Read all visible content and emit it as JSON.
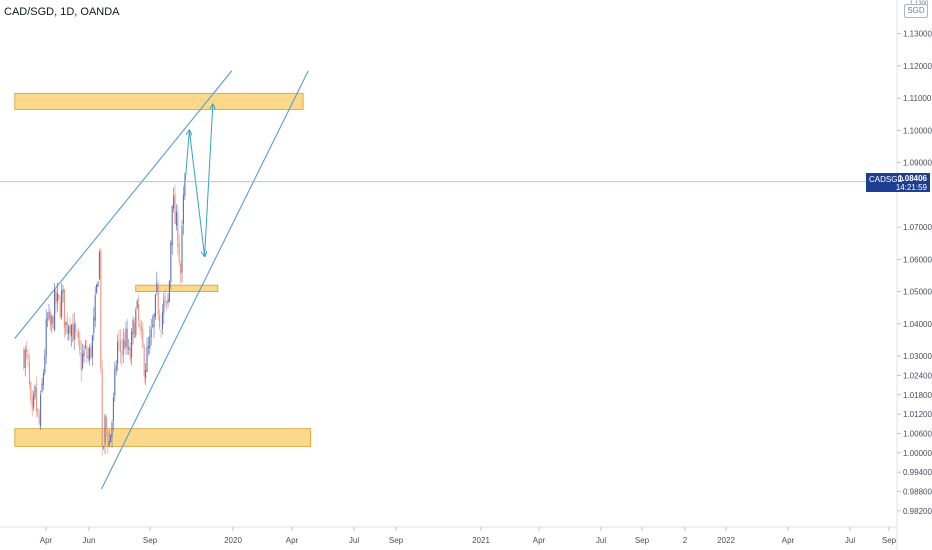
{
  "chart_title": "CAD/SGD, 1D, OANDA",
  "currency_badge": "SGD",
  "gear_hint": "1.1300",
  "price_tag": {
    "symbol": "CADSGD",
    "value": "1.08406",
    "countdown": "14:21:59"
  },
  "colors": {
    "up": "#5b6fb5",
    "down": "#f0917f",
    "zone_fill": "#fcd88a",
    "zone_border": "#d69e2e",
    "trendline": "#5b9bd5",
    "projection": "#3aa0c8",
    "price_line": "#8ab4e0",
    "price_tag": "#1e3f91"
  },
  "chart_data": {
    "type": "candlestick",
    "title": "CAD/SGD, 1D, OANDA",
    "y_range": [
      0.977,
      1.1395
    ],
    "y_ticks": [
      "1.13000",
      "1.12000",
      "1.11000",
      "1.10000",
      "1.09000",
      "1.07000",
      "1.06000",
      "1.05000",
      "1.04000",
      "1.03000",
      "1.02400",
      "1.01800",
      "1.01200",
      "1.00600",
      "1.00000",
      "0.99400",
      "0.98800",
      "0.98200"
    ],
    "x_ticks": [
      "Apr",
      "Jun",
      "Sep",
      "2020",
      "Apr",
      "Jul",
      "Sep",
      "2021",
      "Apr",
      "Jul",
      "Sep",
      "2",
      "2022",
      "Apr",
      "Jul",
      "Sep"
    ],
    "last_price": 1.08406,
    "price_path": [
      [
        "2019-03-01",
        1.031
      ],
      [
        "2019-03-20",
        1.028
      ],
      [
        "2019-04-10",
        1.008
      ],
      [
        "2019-04-25",
        1.018
      ],
      [
        "2019-05-15",
        1.007
      ],
      [
        "2019-06-05",
        1.024
      ],
      [
        "2019-06-25",
        1.041
      ],
      [
        "2019-07-15",
        1.038
      ],
      [
        "2019-08-05",
        1.047
      ],
      [
        "2019-08-25",
        1.045
      ],
      [
        "2019-09-10",
        1.049
      ],
      [
        "2019-09-25",
        1.039
      ],
      [
        "2019-10-15",
        1.042
      ],
      [
        "2019-11-05",
        1.037
      ],
      [
        "2019-11-25",
        1.033
      ],
      [
        "2019-12-10",
        1.028
      ],
      [
        "2019-12-31",
        1.031
      ],
      [
        "2020-01-20",
        1.029
      ],
      [
        "2020-02-10",
        1.036
      ],
      [
        "2020-03-01",
        1.052
      ],
      [
        "2020-03-12",
        1.064
      ],
      [
        "2020-03-19",
        1.034
      ],
      [
        "2020-03-24",
        0.995
      ],
      [
        "2020-04-10",
        1.009
      ],
      [
        "2020-05-01",
        1.003
      ],
      [
        "2020-05-20",
        1.013
      ],
      [
        "2020-06-10",
        1.034
      ],
      [
        "2020-07-01",
        1.031
      ],
      [
        "2020-07-20",
        1.036
      ],
      [
        "2020-08-10",
        1.028
      ],
      [
        "2020-08-30",
        1.039
      ],
      [
        "2020-09-15",
        1.044
      ],
      [
        "2020-10-05",
        1.035
      ],
      [
        "2020-10-25",
        1.027
      ],
      [
        "2020-11-15",
        1.032
      ],
      [
        "2020-12-05",
        1.038
      ],
      [
        "2020-12-25",
        1.049
      ],
      [
        "2021-01-10",
        1.041
      ],
      [
        "2021-01-30",
        1.046
      ],
      [
        "2021-02-15",
        1.043
      ],
      [
        "2021-02-28",
        1.056
      ],
      [
        "2021-03-10",
        1.081
      ],
      [
        "2021-03-25",
        1.072
      ],
      [
        "2021-04-10",
        1.068
      ],
      [
        "2021-04-21",
        1.054
      ],
      [
        "2021-05-05",
        1.076
      ],
      [
        "2021-05-15",
        1.084
      ]
    ],
    "zones": [
      {
        "low": 1.1065,
        "high": 1.1115,
        "start": "2019-01-15",
        "end": "2022-12-25"
      },
      {
        "low": 1.05,
        "high": 1.052,
        "start": "2020-09-10",
        "end": "2021-10-25"
      },
      {
        "low": 1.002,
        "high": 1.0075,
        "start": "2019-01-15",
        "end": "2023-02-01"
      }
    ],
    "trendlines": [
      {
        "from": [
          "2019-01-15",
          1.0355
        ],
        "to": [
          "2022-01-03",
          1.1185
        ]
      },
      {
        "from": [
          "2020-03-23",
          0.9888
        ],
        "to": [
          "2023-01-20",
          1.1185
        ]
      }
    ],
    "projection": [
      [
        "2021-05-15",
        1.084
      ],
      [
        "2021-06-05",
        1.1
      ],
      [
        "2021-08-20",
        1.061
      ],
      [
        "2021-09-30",
        1.108
      ]
    ]
  }
}
